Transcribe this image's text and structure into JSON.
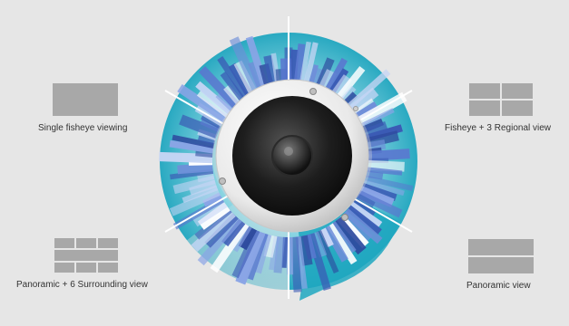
{
  "view_modes": [
    {
      "id": "single",
      "label": "Single fisheye viewing",
      "icon": "single-pane-icon"
    },
    {
      "id": "fisheye-3",
      "label": "Fisheye + 3 Regional view",
      "icon": "quad-pane-icon"
    },
    {
      "id": "panoramic-6",
      "label": "Panoramic + 6 Surrounding view",
      "icon": "six-pane-icon"
    },
    {
      "id": "panoramic",
      "label": "Panoramic view",
      "icon": "dual-pane-icon"
    }
  ],
  "colors": {
    "background": "#e6e6e6",
    "icon_fill": "#a8a8a8",
    "accent_teal": "#1fa7bf",
    "accent_light": "#7fd0de",
    "camera_dark": "#222222",
    "camera_dome": "#f4f4f4"
  },
  "hero": {
    "subject": "fisheye-dome-camera-with-city-skyline"
  }
}
